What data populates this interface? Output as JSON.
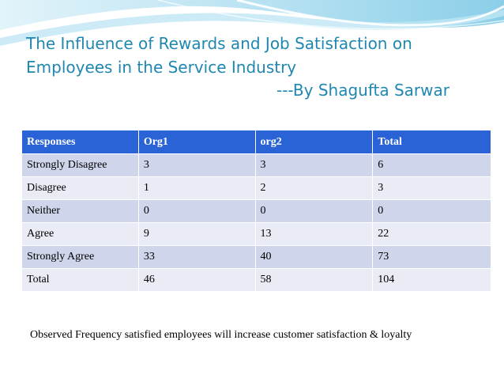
{
  "title_lines": [
    "The Influence of Rewards and Job Satisfaction on",
    "Employees in the Service Industry"
  ],
  "author": "---By Shagufta Sarwar",
  "table": {
    "headers": [
      "Responses",
      "Org1",
      "org2",
      "Total"
    ],
    "rows": [
      [
        "Strongly Disagree",
        "3",
        "3",
        "6"
      ],
      [
        "Disagree",
        "1",
        "2",
        "3"
      ],
      [
        "Neither",
        "0",
        "0",
        "0"
      ],
      [
        "Agree",
        "9",
        "13",
        "22"
      ],
      [
        "Strongly Agree",
        "33",
        "40",
        "73"
      ],
      [
        "Total",
        "46",
        "58",
        "104"
      ]
    ]
  },
  "note": "Observed Frequency satisfied employees will increase customer satisfaction & loyalty",
  "colors": {
    "title": "#1f87b0",
    "header_bg": "#2a63d6",
    "row_odd": "#cfd5ea",
    "row_even": "#e9ebf5",
    "wave": "#9fd6ea"
  }
}
